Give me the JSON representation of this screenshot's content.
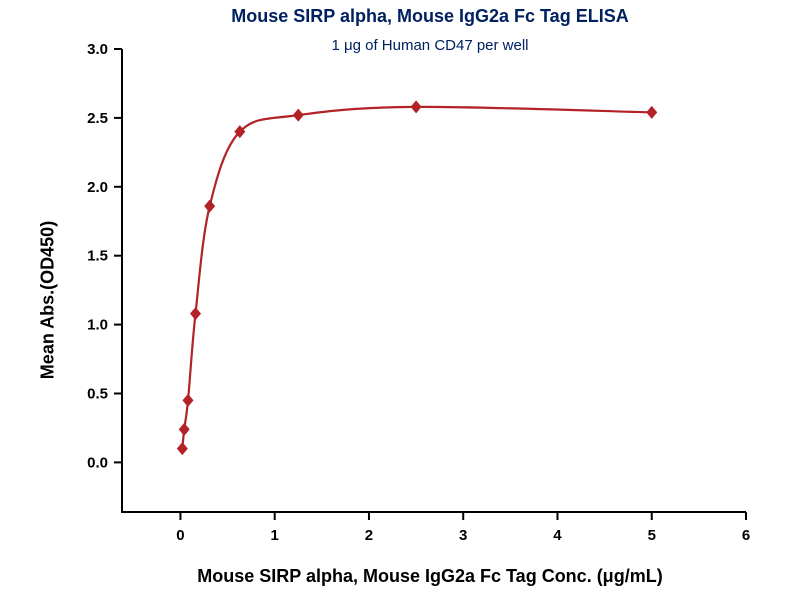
{
  "chart_data": {
    "type": "scatter",
    "title": "Mouse SIRP alpha, Mouse IgG2a Fc Tag ELISA",
    "subtitle": "1 μg of Human CD47 per well",
    "xlabel": "Mouse SIRP alpha, Mouse IgG2a Fc Tag Conc. (μg/mL)",
    "ylabel": "Mean Abs.(OD450)",
    "x": [
      0.02,
      0.04,
      0.08,
      0.16,
      0.31,
      0.63,
      1.25,
      2.5,
      5.0
    ],
    "y": [
      0.1,
      0.24,
      0.45,
      1.08,
      1.86,
      2.4,
      2.52,
      2.58,
      2.54
    ],
    "xlim": [
      -0.62,
      6.0
    ],
    "ylim": [
      -0.36,
      3.0
    ],
    "xticks": [
      0,
      1,
      2,
      3,
      4,
      5,
      6
    ],
    "xtick_labels": [
      "0",
      "1",
      "2",
      "3",
      "4",
      "5",
      "6"
    ],
    "yticks": [
      0.0,
      0.5,
      1.0,
      1.5,
      2.0,
      2.5,
      3.0
    ],
    "ytick_labels": [
      "0.0",
      "0.5",
      "1.0",
      "1.5",
      "2.0",
      "2.5",
      "3.0"
    ],
    "marker": "diamond",
    "line_style": "fitted-curve",
    "series_color": "#b22227",
    "title_color": "#002060",
    "subtitle_color": "#002060",
    "axis_color": "#000000",
    "grid": false,
    "legend": "none"
  }
}
